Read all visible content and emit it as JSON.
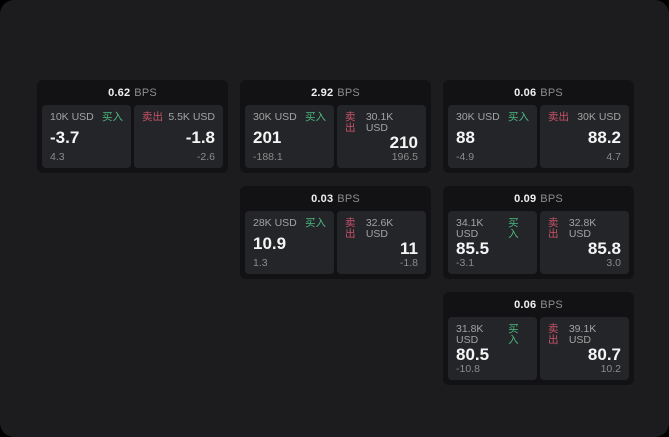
{
  "labels": {
    "bps_unit": "BPS",
    "buy": "买入",
    "sell": "卖出"
  },
  "colors": {
    "buy": "#4cb87f",
    "sell": "#c75269",
    "page_bg": "#1c1c1e",
    "card_bg": "#121214",
    "panel_bg": "#242528"
  },
  "cards": [
    {
      "bps": "0.62",
      "buy": {
        "size": "10K USD",
        "price": "-3.7",
        "sub": "4.3"
      },
      "sell": {
        "size": "5.5K USD",
        "price": "-1.8",
        "sub": "-2.6"
      }
    },
    {
      "bps": "2.92",
      "buy": {
        "size": "30K USD",
        "price": "201",
        "sub": "-188.1"
      },
      "sell": {
        "size": "30.1K USD",
        "price": "210",
        "sub": "196.5"
      }
    },
    {
      "bps": "0.06",
      "buy": {
        "size": "30K USD",
        "price": "88",
        "sub": "-4.9"
      },
      "sell": {
        "size": "30K USD",
        "price": "88.2",
        "sub": "4.7"
      }
    },
    {
      "bps": "0.03",
      "buy": {
        "size": "28K USD",
        "price": "10.9",
        "sub": "1.3"
      },
      "sell": {
        "size": "32.6K USD",
        "price": "11",
        "sub": "-1.8"
      }
    },
    {
      "bps": "0.09",
      "buy": {
        "size": "34.1K USD",
        "price": "85.5",
        "sub": "-3.1"
      },
      "sell": {
        "size": "32.8K USD",
        "price": "85.8",
        "sub": "3.0"
      }
    },
    {
      "bps": "0.06",
      "buy": {
        "size": "31.8K USD",
        "price": "80.5",
        "sub": "-10.8"
      },
      "sell": {
        "size": "39.1K USD",
        "price": "80.7",
        "sub": "10.2"
      }
    }
  ]
}
